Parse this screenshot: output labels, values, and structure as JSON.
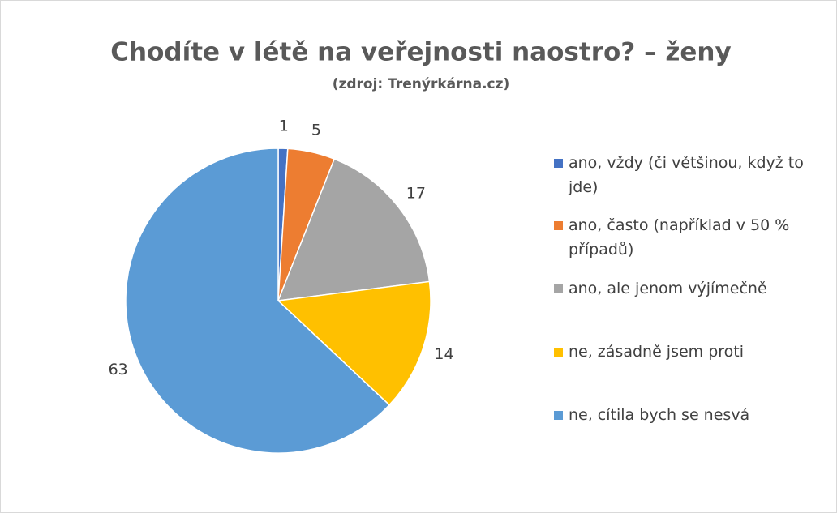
{
  "chart_data": {
    "type": "pie",
    "title": "Chodíte v létě na veřejnosti naostro? – ženy",
    "subtitle": "(zdroj: Trenýrkárna.cz)",
    "categories": [
      "ano, vždy (či většinou, když to jde)",
      "ano, často (například v 50 % případů)",
      "ano, ale jenom výjímečně",
      "ne, zásadně jsem proti",
      "ne, cítila bych se nesvá"
    ],
    "values": [
      1,
      5,
      17,
      14,
      63
    ],
    "colors": [
      "#4472c4",
      "#ed7d31",
      "#a5a5a5",
      "#ffc000",
      "#5b9bd5"
    ],
    "legend": "right"
  }
}
